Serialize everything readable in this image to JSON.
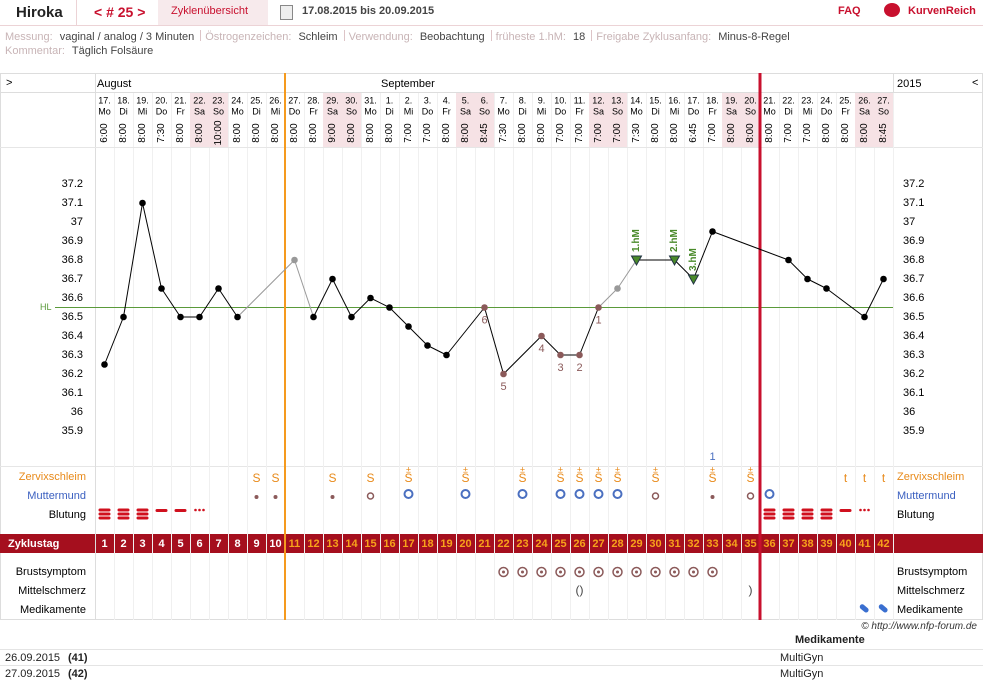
{
  "header": {
    "user": "Hiroka",
    "cycle_nav": "< # 25 >",
    "overview": "Zyklenübersicht",
    "range": "17.08.2015 bis 20.09.2015",
    "faq": "FAQ",
    "brand": "KurvenReich"
  },
  "info": {
    "items": [
      {
        "label": "Messung:",
        "value": "vaginal / analog / 3 Minuten"
      },
      {
        "label": "Östrogenzeichen:",
        "value": "Schleim"
      },
      {
        "label": "Verwendung:",
        "value": "Beobachtung"
      },
      {
        "label": "früheste 1.hM:",
        "value": "18"
      },
      {
        "label": "Freigabe Zyklusanfang:",
        "value": "Minus-8-Regel"
      }
    ],
    "comment_label": "Kommentar:",
    "comment": "Täglich Folsäure"
  },
  "chart_data": {
    "type": "line",
    "nav_left": ">",
    "nav_right": "<",
    "months": [
      "August",
      "September"
    ],
    "year": "2015",
    "days": [
      "17.",
      "18.",
      "19.",
      "20.",
      "21.",
      "22.",
      "23.",
      "24.",
      "25.",
      "26.",
      "27.",
      "28.",
      "29.",
      "30.",
      "31.",
      "1.",
      "2.",
      "3.",
      "4.",
      "5.",
      "6.",
      "7.",
      "8.",
      "9.",
      "10.",
      "11.",
      "12.",
      "13.",
      "14.",
      "15.",
      "16.",
      "17.",
      "18.",
      "19.",
      "20.",
      "21.",
      "22.",
      "23.",
      "24.",
      "25.",
      "26.",
      "27."
    ],
    "weekdays": [
      "Mo",
      "Di",
      "Mi",
      "Do",
      "Fr",
      "Sa",
      "So",
      "Mo",
      "Di",
      "Mi",
      "Do",
      "Fr",
      "Sa",
      "So",
      "Mo",
      "Di",
      "Mi",
      "Do",
      "Fr",
      "Sa",
      "So",
      "Mo",
      "Di",
      "Mi",
      "Do",
      "Fr",
      "Sa",
      "So",
      "Mo",
      "Di",
      "Mi",
      "Do",
      "Fr",
      "Sa",
      "So",
      "Mo",
      "Di",
      "Mi",
      "Do",
      "Fr",
      "Sa",
      "So"
    ],
    "times": [
      "6:00",
      "8:00",
      "8:00",
      "7:30",
      "8:00",
      "8:00",
      "10:00",
      "8:00",
      "8:00",
      "8:00",
      "8:00",
      "8:00",
      "9:00",
      "8:00",
      "8:00",
      "8:00",
      "7:00",
      "7:00",
      "8:00",
      "8:00",
      "8:45",
      "7:30",
      "8:00",
      "8:00",
      "7:00",
      "7:00",
      "7:00",
      "7:00",
      "7:30",
      "8:00",
      "8:00",
      "6:45",
      "7:00",
      "8:00",
      "8:00",
      "8:00",
      "7:00",
      "7:00",
      "8:00",
      "8:00",
      "8:00",
      "8:45"
    ],
    "values": [
      36.25,
      36.5,
      37.1,
      36.65,
      36.5,
      36.5,
      36.65,
      36.5,
      null,
      null,
      36.8,
      36.5,
      36.7,
      36.5,
      36.6,
      36.55,
      36.45,
      36.35,
      36.3,
      null,
      36.55,
      36.2,
      null,
      36.4,
      36.3,
      36.3,
      36.55,
      36.65,
      36.8,
      null,
      36.8,
      36.7,
      36.95,
      null,
      null,
      null,
      36.8,
      36.7,
      36.65,
      null,
      36.5,
      36.7
    ],
    "point_colors": [
      "#000",
      "#000",
      "#000",
      "#000",
      "#000",
      "#000",
      "#000",
      "#000",
      null,
      null,
      "#999",
      "#000",
      "#000",
      "#000",
      "#000",
      "#000",
      "#000",
      "#000",
      "#000",
      null,
      "#8b5a5a",
      "#8b5a5a",
      null,
      "#8b5a5a",
      "#8b5a5a",
      "#8b5a5a",
      "#8b5a5a",
      "#999",
      "#4a8a2a",
      null,
      "#4a8a2a",
      "#4a8a2a",
      "#000",
      null,
      null,
      null,
      "#000",
      "#000",
      "#000",
      null,
      "#000",
      "#000"
    ],
    "point_labels": [
      null,
      null,
      null,
      null,
      null,
      null,
      null,
      null,
      null,
      null,
      null,
      null,
      null,
      null,
      null,
      null,
      null,
      null,
      null,
      null,
      "6",
      "5",
      null,
      "4",
      "3",
      "2",
      "1",
      null,
      null,
      null,
      null,
      null,
      null,
      null,
      null,
      null,
      null,
      null,
      null,
      null,
      null,
      null
    ],
    "peak_labels": [
      null,
      null,
      null,
      null,
      null,
      null,
      null,
      null,
      null,
      null,
      null,
      null,
      null,
      null,
      null,
      null,
      null,
      null,
      null,
      null,
      null,
      null,
      null,
      null,
      null,
      null,
      null,
      null,
      "1.hM",
      null,
      "2.hM",
      "3.hM",
      null,
      null,
      null,
      null,
      null,
      null,
      null,
      null,
      null,
      null
    ],
    "top_markers": [
      null,
      null,
      null,
      null,
      null,
      null,
      null,
      null,
      null,
      null,
      null,
      null,
      null,
      null,
      null,
      null,
      null,
      null,
      null,
      null,
      null,
      null,
      null,
      null,
      null,
      null,
      null,
      null,
      null,
      null,
      null,
      null,
      "1",
      null,
      null,
      null,
      null,
      null,
      null,
      null,
      null,
      null
    ],
    "ylim": [
      35.9,
      37.2
    ],
    "yticks": [
      35.9,
      36,
      36.1,
      36.2,
      36.3,
      36.4,
      36.5,
      36.6,
      36.7,
      36.8,
      36.9,
      37,
      37.1,
      37.2
    ],
    "coverline": 36.55,
    "coverline_label": "HL",
    "cervical": {
      "label": "Zervixschleim",
      "values": [
        null,
        null,
        null,
        null,
        null,
        null,
        null,
        null,
        "S",
        "S",
        null,
        null,
        "S",
        null,
        "S",
        null,
        "S",
        null,
        null,
        "S",
        null,
        null,
        "S",
        null,
        "S",
        "S",
        "S",
        "S",
        null,
        "S",
        null,
        null,
        "S",
        null,
        "S",
        null,
        null,
        null,
        null,
        "t",
        "t",
        "t"
      ],
      "plus": [
        null,
        null,
        null,
        null,
        null,
        null,
        null,
        null,
        null,
        null,
        null,
        null,
        null,
        null,
        null,
        null,
        "±",
        null,
        null,
        "±",
        null,
        null,
        "±",
        null,
        "±",
        "±",
        "±",
        "±",
        null,
        "±",
        null,
        null,
        "±",
        null,
        "±",
        null,
        null,
        null,
        null,
        null,
        null,
        null
      ]
    },
    "cervix": {
      "label": "Muttermund",
      "values": [
        null,
        null,
        null,
        null,
        null,
        null,
        null,
        null,
        1,
        1,
        null,
        null,
        1,
        null,
        2,
        null,
        3,
        null,
        null,
        3,
        null,
        null,
        3,
        null,
        3,
        3,
        3,
        3,
        null,
        2,
        null,
        null,
        1,
        null,
        2,
        3,
        null,
        null,
        null,
        null,
        null,
        null
      ]
    },
    "bleeding": {
      "label": "Blutung",
      "values": [
        3,
        3,
        3,
        2,
        2,
        1,
        null,
        null,
        null,
        null,
        null,
        null,
        null,
        null,
        null,
        null,
        null,
        null,
        null,
        null,
        null,
        null,
        null,
        null,
        null,
        null,
        null,
        null,
        null,
        null,
        null,
        null,
        null,
        null,
        null,
        3,
        3,
        3,
        3,
        2,
        1,
        null
      ]
    },
    "cycle_day_label": "Zyklustag",
    "cycle_days": [
      1,
      2,
      3,
      4,
      5,
      6,
      7,
      8,
      9,
      10,
      11,
      12,
      13,
      14,
      15,
      16,
      17,
      18,
      19,
      20,
      21,
      22,
      23,
      24,
      25,
      26,
      27,
      28,
      29,
      30,
      31,
      32,
      33,
      34,
      35,
      36,
      37,
      38,
      39,
      40,
      41,
      42
    ],
    "breast": {
      "label": "Brustsymptom",
      "values": [
        null,
        null,
        null,
        null,
        null,
        null,
        null,
        null,
        null,
        null,
        null,
        null,
        null,
        null,
        null,
        null,
        null,
        null,
        null,
        null,
        null,
        1,
        1,
        1,
        1,
        1,
        1,
        1,
        1,
        1,
        1,
        1,
        1,
        null,
        null,
        null,
        null,
        null,
        null,
        null,
        null,
        null
      ]
    },
    "pain": {
      "label": "Mittelschmerz",
      "values": [
        null,
        null,
        null,
        null,
        null,
        null,
        null,
        null,
        null,
        null,
        null,
        null,
        null,
        null,
        null,
        null,
        null,
        null,
        null,
        null,
        null,
        null,
        null,
        null,
        null,
        "()",
        null,
        null,
        null,
        null,
        null,
        null,
        null,
        null,
        ")",
        null,
        null,
        null,
        null,
        null,
        null,
        null
      ]
    },
    "meds": {
      "label": "Medikamente",
      "values": [
        null,
        null,
        null,
        null,
        null,
        null,
        null,
        null,
        null,
        null,
        null,
        null,
        null,
        null,
        null,
        null,
        null,
        null,
        null,
        null,
        null,
        null,
        null,
        null,
        null,
        null,
        null,
        null,
        null,
        null,
        null,
        null,
        null,
        null,
        null,
        null,
        null,
        null,
        null,
        null,
        1,
        1
      ]
    },
    "credit": "© http://www.nfp-forum.de"
  },
  "table": {
    "header": "Medikamente",
    "rows": [
      [
        "26.09.2015",
        "(41)",
        "MultiGyn"
      ],
      [
        "27.09.2015",
        "(42)",
        "MultiGyn"
      ]
    ]
  }
}
